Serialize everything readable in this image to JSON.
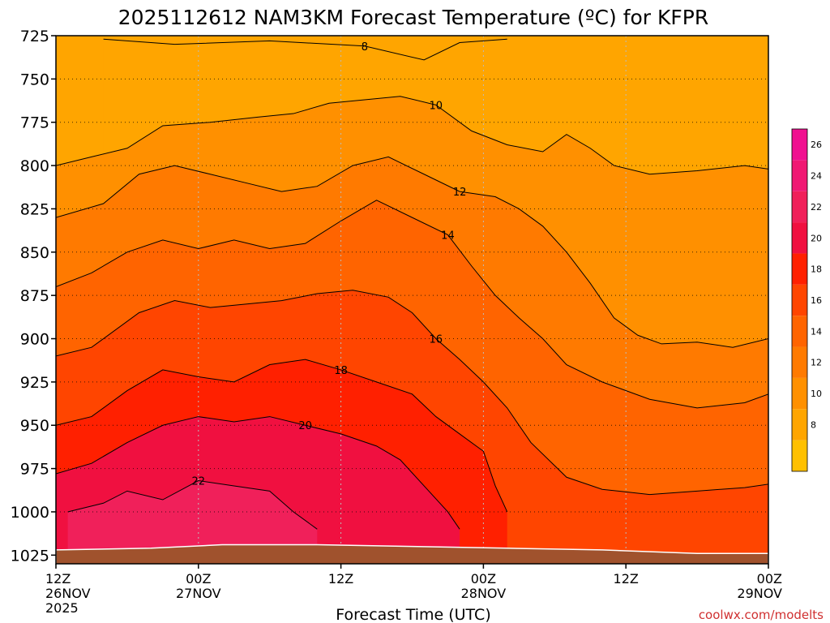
{
  "chart_data": {
    "type": "heatmap",
    "title": "2025112612 NAM3KM Forecast Temperature (ºC) for KFPR",
    "xlabel": "Forecast Time (UTC)",
    "ylabel": "",
    "watermark": "coolwx.com/modelts",
    "xlim": [
      0,
      60
    ],
    "ylim": [
      1030,
      725
    ],
    "x_ticks": [
      {
        "value": 0,
        "line1": "12Z",
        "line2": "26NOV",
        "line3": "2025"
      },
      {
        "value": 12,
        "line1": "00Z",
        "line2": "27NOV",
        "line3": ""
      },
      {
        "value": 24,
        "line1": "12Z",
        "line2": "",
        "line3": ""
      },
      {
        "value": 36,
        "line1": "00Z",
        "line2": "28NOV",
        "line3": ""
      },
      {
        "value": 48,
        "line1": "12Z",
        "line2": "",
        "line3": ""
      },
      {
        "value": 60,
        "line1": "00Z",
        "line2": "29NOV",
        "line3": ""
      }
    ],
    "y_ticks": [
      {
        "value": 725,
        "label": "725"
      },
      {
        "value": 750,
        "label": "750"
      },
      {
        "value": 775,
        "label": "775"
      },
      {
        "value": 800,
        "label": "800"
      },
      {
        "value": 825,
        "label": "825"
      },
      {
        "value": 850,
        "label": "850"
      },
      {
        "value": 875,
        "label": "875"
      },
      {
        "value": 900,
        "label": "900"
      },
      {
        "value": 925,
        "label": "925"
      },
      {
        "value": 950,
        "label": "950"
      },
      {
        "value": 975,
        "label": "975"
      },
      {
        "value": 1000,
        "label": "1000"
      },
      {
        "value": 1025,
        "label": "1025"
      }
    ],
    "colorbar": {
      "bands": [
        {
          "lo": 6,
          "hi": 8,
          "color": "#ffc000"
        },
        {
          "lo": 8,
          "hi": 10,
          "color": "#ffa500"
        },
        {
          "lo": 10,
          "hi": 12,
          "color": "#ff9000"
        },
        {
          "lo": 12,
          "hi": 14,
          "color": "#ff7a00"
        },
        {
          "lo": 14,
          "hi": 16,
          "color": "#ff6400"
        },
        {
          "lo": 16,
          "hi": 18,
          "color": "#ff4500"
        },
        {
          "lo": 18,
          "hi": 20,
          "color": "#ff2000"
        },
        {
          "lo": 20,
          "hi": 22,
          "color": "#f01040"
        },
        {
          "lo": 22,
          "hi": 24,
          "color": "#f0205a"
        },
        {
          "lo": 24,
          "hi": 26,
          "color": "#f01873"
        },
        {
          "lo": 26,
          "hi": 28,
          "color": "#f01090"
        }
      ],
      "tick_labels": [
        "8",
        "10",
        "12",
        "14",
        "16",
        "18",
        "20",
        "22",
        "24",
        "26"
      ]
    },
    "contours": [
      {
        "level": 8,
        "label": "8",
        "points": [
          [
            4,
            727
          ],
          [
            10,
            730
          ],
          [
            18,
            728
          ],
          [
            26,
            731
          ],
          [
            31,
            739
          ],
          [
            34,
            729
          ],
          [
            38,
            727
          ]
        ]
      },
      {
        "level": 10,
        "label": "10",
        "points": [
          [
            0,
            800
          ],
          [
            3,
            795
          ],
          [
            6,
            790
          ],
          [
            9,
            777
          ],
          [
            13,
            775
          ],
          [
            17,
            772
          ],
          [
            20,
            770
          ],
          [
            23,
            764
          ],
          [
            26,
            762
          ],
          [
            29,
            760
          ],
          [
            32,
            765
          ],
          [
            35,
            780
          ],
          [
            38,
            788
          ],
          [
            41,
            792
          ],
          [
            43,
            782
          ],
          [
            45,
            790
          ],
          [
            47,
            800
          ],
          [
            50,
            805
          ],
          [
            54,
            803
          ],
          [
            58,
            800
          ],
          [
            60,
            802
          ]
        ]
      },
      {
        "level": 12,
        "label": "12",
        "points": [
          [
            0,
            830
          ],
          [
            4,
            822
          ],
          [
            7,
            805
          ],
          [
            10,
            800
          ],
          [
            13,
            805
          ],
          [
            16,
            810
          ],
          [
            19,
            815
          ],
          [
            22,
            812
          ],
          [
            25,
            800
          ],
          [
            28,
            795
          ],
          [
            31,
            805
          ],
          [
            34,
            815
          ],
          [
            37,
            818
          ],
          [
            39,
            825
          ],
          [
            41,
            835
          ],
          [
            43,
            850
          ],
          [
            45,
            868
          ],
          [
            47,
            888
          ],
          [
            49,
            898
          ],
          [
            51,
            903
          ],
          [
            54,
            902
          ],
          [
            57,
            905
          ],
          [
            60,
            900
          ]
        ]
      },
      {
        "level": 14,
        "label": "14",
        "points": [
          [
            0,
            870
          ],
          [
            3,
            862
          ],
          [
            6,
            850
          ],
          [
            9,
            843
          ],
          [
            12,
            848
          ],
          [
            15,
            843
          ],
          [
            18,
            848
          ],
          [
            21,
            845
          ],
          [
            24,
            832
          ],
          [
            27,
            820
          ],
          [
            30,
            830
          ],
          [
            33,
            840
          ],
          [
            35,
            858
          ],
          [
            37,
            875
          ],
          [
            39,
            888
          ],
          [
            41,
            900
          ],
          [
            43,
            915
          ],
          [
            46,
            925
          ],
          [
            50,
            935
          ],
          [
            54,
            940
          ],
          [
            58,
            937
          ],
          [
            60,
            932
          ]
        ]
      },
      {
        "level": 16,
        "label": "16",
        "points": [
          [
            0,
            910
          ],
          [
            3,
            905
          ],
          [
            7,
            885
          ],
          [
            10,
            878
          ],
          [
            13,
            882
          ],
          [
            16,
            880
          ],
          [
            19,
            878
          ],
          [
            22,
            874
          ],
          [
            25,
            872
          ],
          [
            28,
            876
          ],
          [
            30,
            885
          ],
          [
            32,
            900
          ],
          [
            34,
            912
          ],
          [
            36,
            925
          ],
          [
            38,
            940
          ],
          [
            40,
            960
          ],
          [
            43,
            980
          ],
          [
            46,
            987
          ],
          [
            50,
            990
          ],
          [
            54,
            988
          ],
          [
            58,
            986
          ],
          [
            60,
            984
          ]
        ]
      },
      {
        "level": 18,
        "label": "18",
        "points": [
          [
            0,
            950
          ],
          [
            3,
            945
          ],
          [
            6,
            930
          ],
          [
            9,
            918
          ],
          [
            12,
            922
          ],
          [
            15,
            925
          ],
          [
            18,
            915
          ],
          [
            21,
            912
          ],
          [
            24,
            918
          ],
          [
            27,
            925
          ],
          [
            30,
            932
          ],
          [
            32,
            945
          ],
          [
            34,
            955
          ],
          [
            36,
            965
          ],
          [
            37,
            985
          ],
          [
            38,
            1000
          ]
        ]
      },
      {
        "level": 20,
        "label": "20",
        "points": [
          [
            0,
            978
          ],
          [
            3,
            972
          ],
          [
            6,
            960
          ],
          [
            9,
            950
          ],
          [
            12,
            945
          ],
          [
            15,
            948
          ],
          [
            18,
            945
          ],
          [
            21,
            950
          ],
          [
            24,
            955
          ],
          [
            27,
            962
          ],
          [
            29,
            970
          ],
          [
            31,
            985
          ],
          [
            33,
            1000
          ],
          [
            34,
            1010
          ]
        ]
      },
      {
        "level": 22,
        "label": "22",
        "points": [
          [
            1,
            1000
          ],
          [
            4,
            995
          ],
          [
            6,
            988
          ],
          [
            9,
            993
          ],
          [
            12,
            982
          ],
          [
            15,
            985
          ],
          [
            18,
            988
          ],
          [
            20,
            1000
          ],
          [
            22,
            1010
          ]
        ]
      }
    ]
  }
}
